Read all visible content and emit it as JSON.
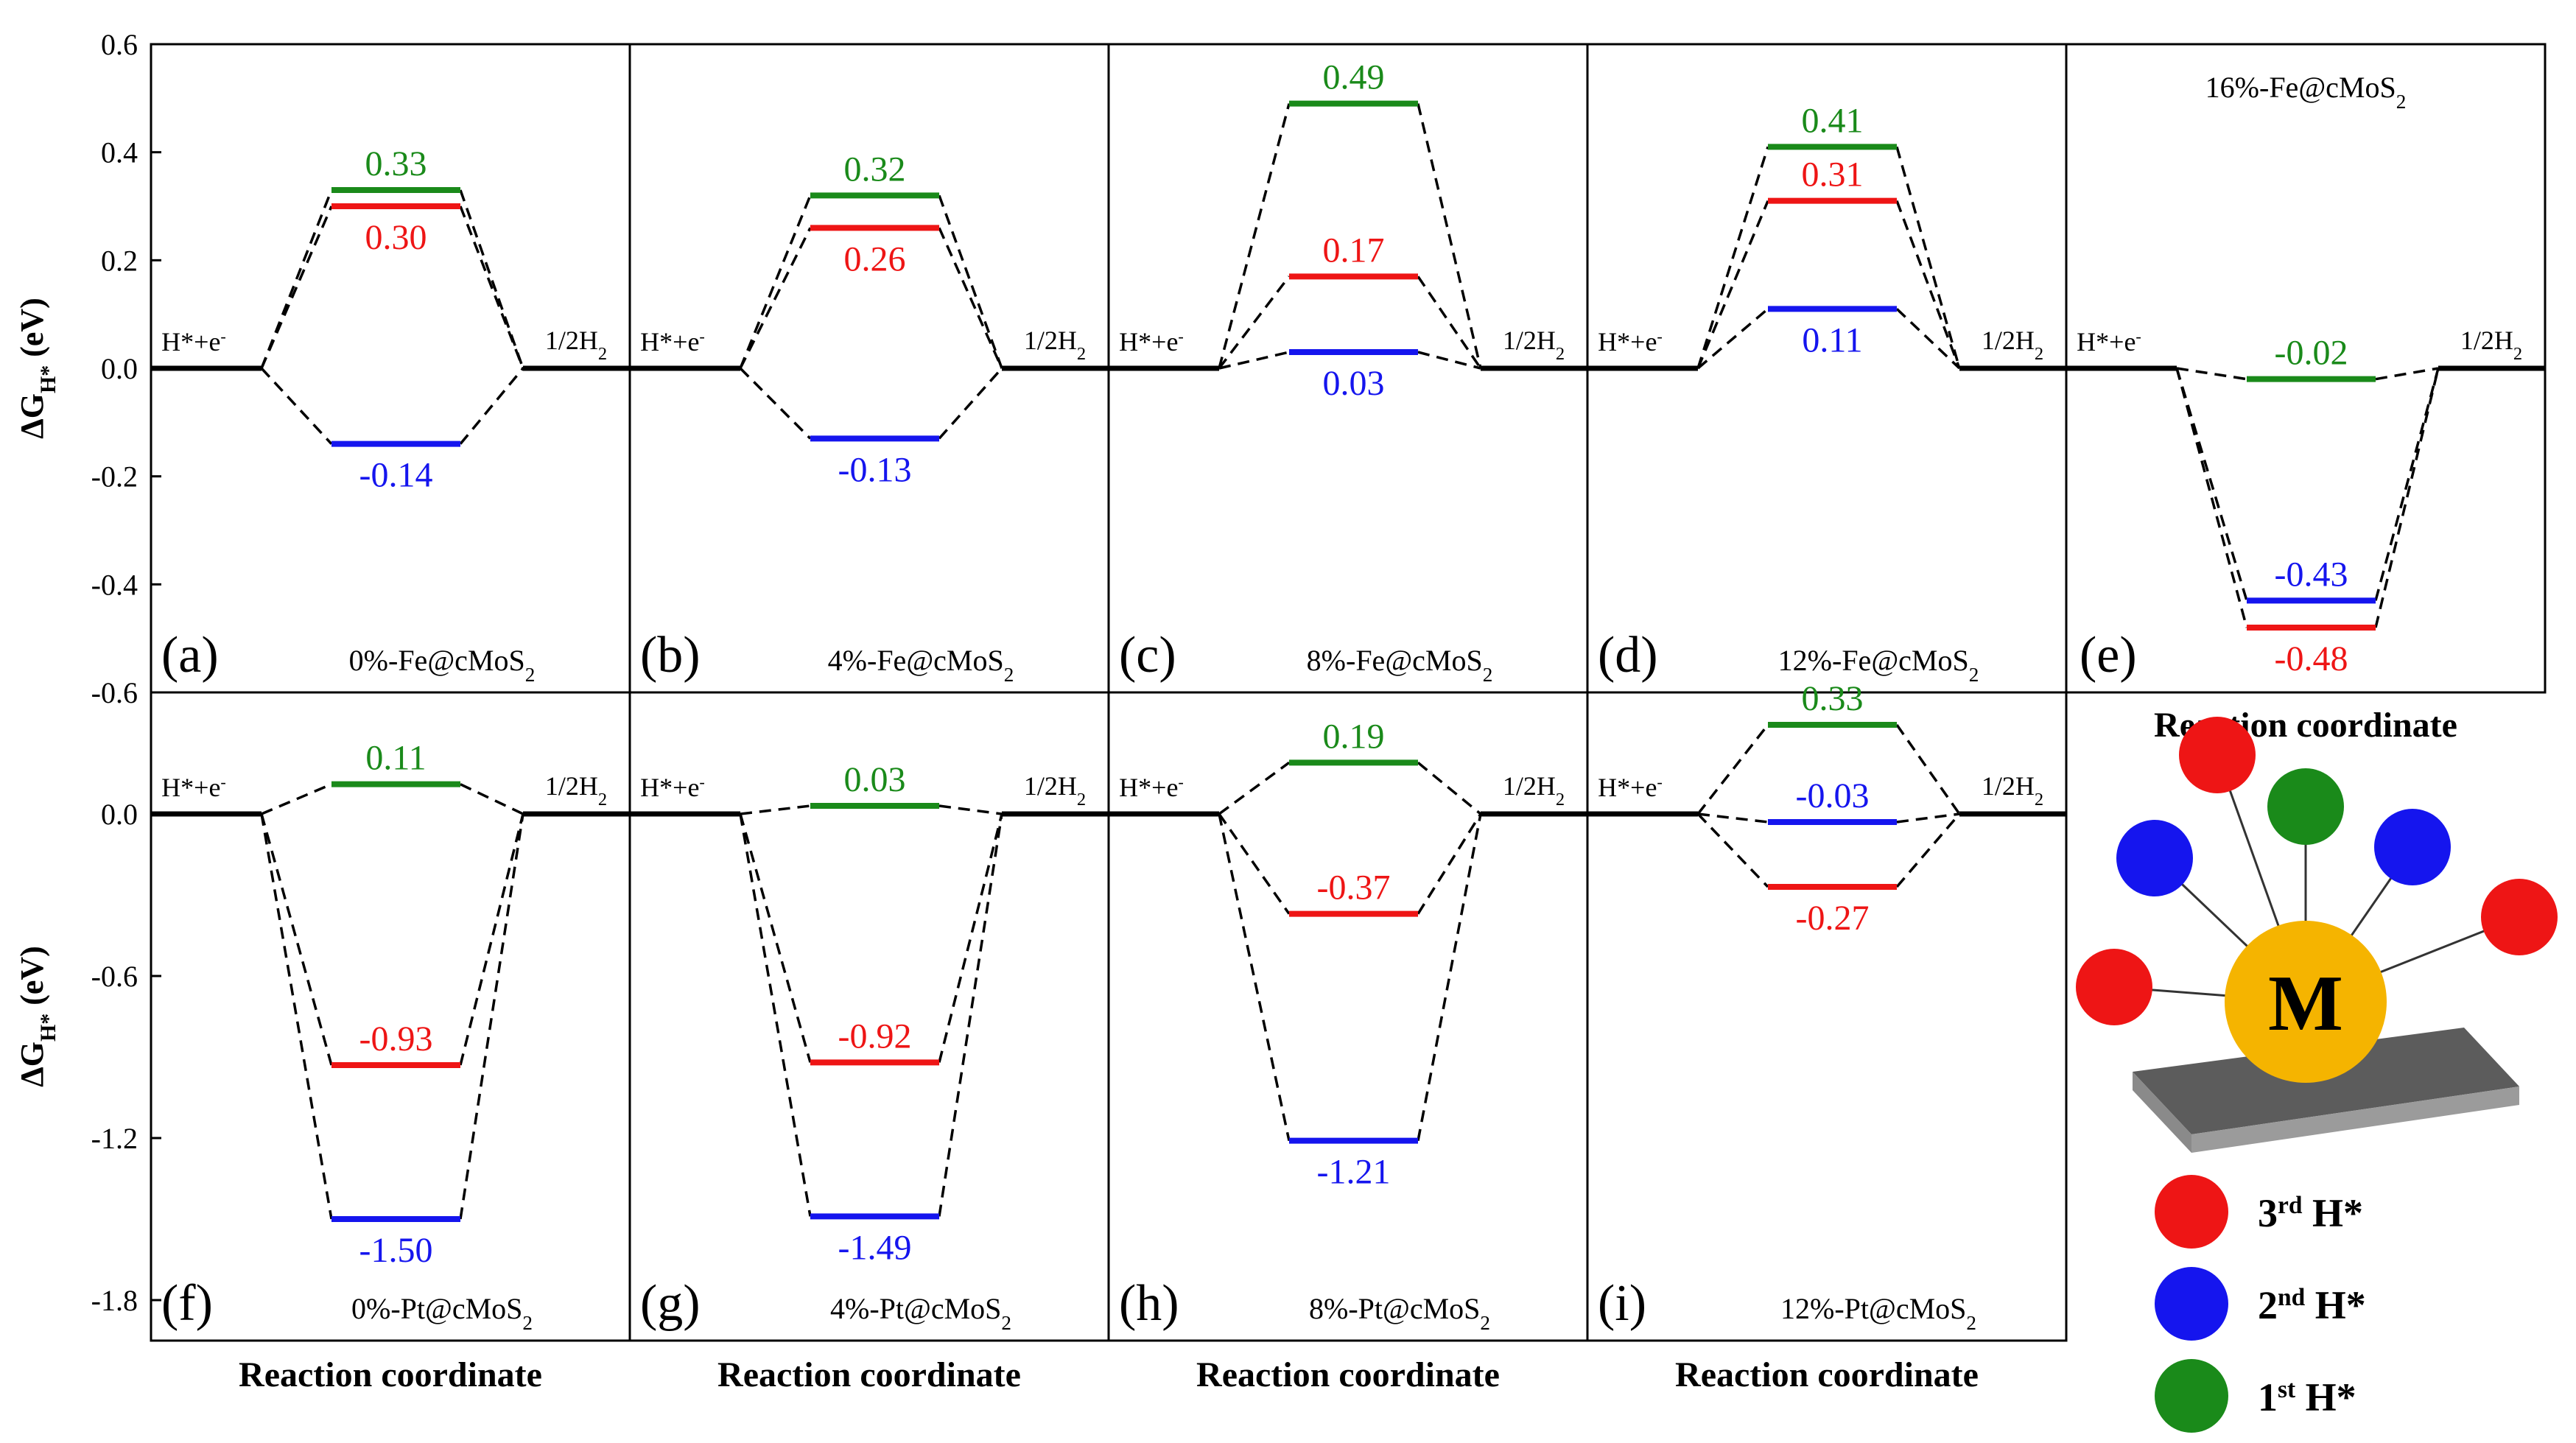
{
  "series_colors": {
    "h1": "#1a8a1a",
    "h2": "#1515ee",
    "h3": "#ee1515",
    "text": "#000000"
  },
  "icons": {
    "metal": "metal-atom-icon",
    "h_atom": "hydrogen-atom-icon",
    "substrate": "substrate-slab-icon"
  },
  "top_row": {
    "ylabel_main": "ΔG",
    "ylabel_sub": "H*",
    "ylabel_unit": " (eV)",
    "yticks": [
      "0.6",
      "0.4",
      "0.2",
      "0.0",
      "-0.2",
      "-0.4",
      "-0.6"
    ],
    "ylim": [
      -0.6,
      0.6
    ]
  },
  "bottom_row": {
    "ylabel_main": "ΔG",
    "ylabel_sub": "H*",
    "ylabel_unit": " (eV)",
    "yticks": [
      "0.0",
      "-0.6",
      "-1.2",
      "-1.8"
    ],
    "ylim": [
      -1.95,
      0.45
    ]
  },
  "xlabels": [
    "Reaction coordinate",
    "Reaction coordinate",
    "Reaction coordinate",
    "Reaction coordinate",
    "Reaction coordinate"
  ],
  "state_labels": {
    "initial": "H*+e",
    "initial_sup": "-",
    "final": "1/2H",
    "final_sub": "2"
  },
  "legend": {
    "metal_label": "M",
    "items": [
      {
        "num": "3",
        "sup": "rd",
        "label": " H*"
      },
      {
        "num": "2",
        "sup": "nd",
        "label": " H*"
      },
      {
        "num": "1",
        "sup": "st",
        "label": " H*"
      }
    ]
  },
  "chart_data": [
    {
      "type": "line",
      "panel": "(a)",
      "title_main": "0%-Fe@cMoS",
      "title_sub": "2",
      "h1": 0.33,
      "h2": -0.14,
      "h3": 0.3,
      "labels": {
        "h1": "0.33",
        "h2": "-0.14",
        "h3": "0.30"
      }
    },
    {
      "type": "line",
      "panel": "(b)",
      "title_main": "4%-Fe@cMoS",
      "title_sub": "2",
      "h1": 0.32,
      "h2": -0.13,
      "h3": 0.26,
      "labels": {
        "h1": "0.32",
        "h2": "-0.13",
        "h3": "0.26"
      }
    },
    {
      "type": "line",
      "panel": "(c)",
      "title_main": "8%-Fe@cMoS",
      "title_sub": "2",
      "h1": 0.49,
      "h2": 0.03,
      "h3": 0.17,
      "labels": {
        "h1": "0.49",
        "h2": "0.03",
        "h3": "0.17"
      }
    },
    {
      "type": "line",
      "panel": "(d)",
      "title_main": "12%-Fe@cMoS",
      "title_sub": "2",
      "h1": 0.41,
      "h2": 0.11,
      "h3": 0.31,
      "labels": {
        "h1": "0.41",
        "h2": "0.11",
        "h3": "0.31"
      }
    },
    {
      "type": "line",
      "panel": "(e)",
      "title_main": "16%-Fe@cMoS",
      "title_sub": "2",
      "h1": -0.02,
      "h2": -0.43,
      "h3": -0.48,
      "labels": {
        "h1": "-0.02",
        "h2": "-0.43",
        "h3": "-0.48"
      }
    },
    {
      "type": "line",
      "panel": "(f)",
      "title_main": "0%-Pt@cMoS",
      "title_sub": "2",
      "h1": 0.11,
      "h2": -1.5,
      "h3": -0.93,
      "labels": {
        "h1": "0.11",
        "h2": "-1.50",
        "h3": "-0.93"
      }
    },
    {
      "type": "line",
      "panel": "(g)",
      "title_main": "4%-Pt@cMoS",
      "title_sub": "2",
      "h1": 0.03,
      "h2": -1.49,
      "h3": -0.92,
      "labels": {
        "h1": "0.03",
        "h2": "-1.49",
        "h3": "-0.92"
      }
    },
    {
      "type": "line",
      "panel": "(h)",
      "title_main": "8%-Pt@cMoS",
      "title_sub": "2",
      "h1": 0.19,
      "h2": -1.21,
      "h3": -0.37,
      "labels": {
        "h1": "0.19",
        "h2": "-1.21",
        "h3": "-0.37"
      }
    },
    {
      "type": "line",
      "panel": "(i)",
      "title_main": "12%-Pt@cMoS",
      "title_sub": "2",
      "h1": 0.33,
      "h2": -0.03,
      "h3": -0.27,
      "labels": {
        "h1": "0.33",
        "h2": "-0.03",
        "h3": "-0.27"
      }
    }
  ]
}
